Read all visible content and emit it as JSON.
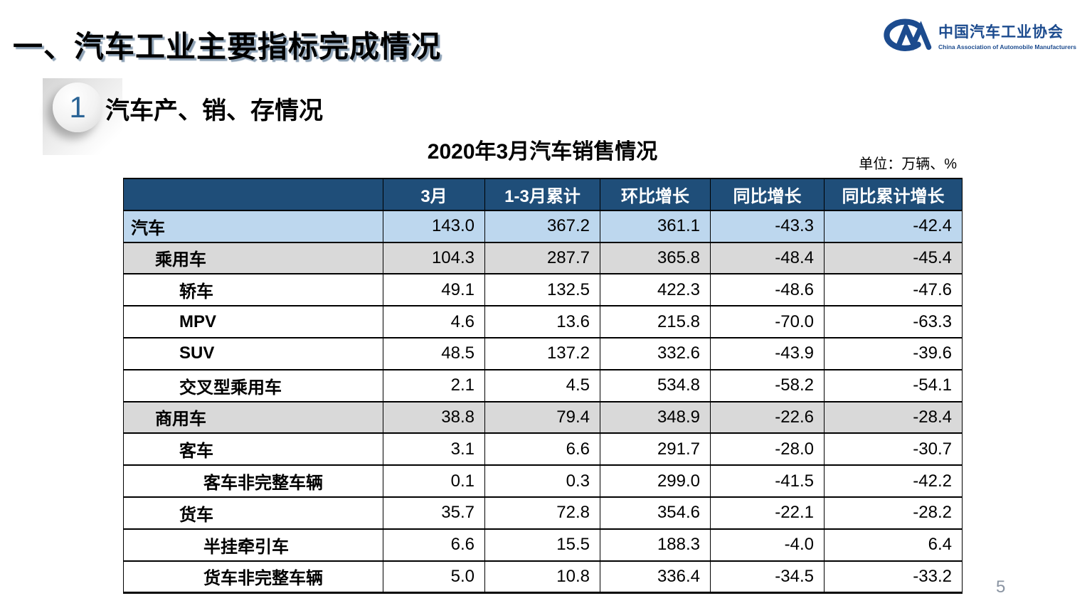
{
  "header": {
    "title": "一、汽车工业主要指标完成情况",
    "logo": {
      "name_cn": "中国汽车工业协会",
      "name_en": "China Association of Automobile Manufacturers"
    }
  },
  "section": {
    "number": "1",
    "title": "汽车产、销、存情况"
  },
  "table": {
    "title": "2020年3月汽车销售情况",
    "unit_label": "单位：万辆、%",
    "columns": [
      "",
      "3月",
      "1-3月累计",
      "环比增长",
      "同比增长",
      "同比累计增长"
    ],
    "rows": [
      {
        "label": "汽车",
        "indent": 0,
        "style": "blue",
        "values": [
          "143.0",
          "367.2",
          "361.1",
          "-43.3",
          "-42.4"
        ]
      },
      {
        "label": "乘用车",
        "indent": 1,
        "style": "gray",
        "values": [
          "104.3",
          "287.7",
          "365.8",
          "-48.4",
          "-45.4"
        ]
      },
      {
        "label": "轿车",
        "indent": 2,
        "style": "white",
        "values": [
          "49.1",
          "132.5",
          "422.3",
          "-48.6",
          "-47.6"
        ]
      },
      {
        "label": "MPV",
        "indent": 2,
        "style": "white",
        "values": [
          "4.6",
          "13.6",
          "215.8",
          "-70.0",
          "-63.3"
        ]
      },
      {
        "label": "SUV",
        "indent": 2,
        "style": "white",
        "values": [
          "48.5",
          "137.2",
          "332.6",
          "-43.9",
          "-39.6"
        ]
      },
      {
        "label": "交叉型乘用车",
        "indent": 2,
        "style": "white",
        "values": [
          "2.1",
          "4.5",
          "534.8",
          "-58.2",
          "-54.1"
        ]
      },
      {
        "label": "商用车",
        "indent": 1,
        "style": "gray",
        "values": [
          "38.8",
          "79.4",
          "348.9",
          "-22.6",
          "-28.4"
        ]
      },
      {
        "label": "客车",
        "indent": 2,
        "style": "white",
        "values": [
          "3.1",
          "6.6",
          "291.7",
          "-28.0",
          "-30.7"
        ]
      },
      {
        "label": "客车非完整车辆",
        "indent": 3,
        "style": "white",
        "values": [
          "0.1",
          "0.3",
          "299.0",
          "-41.5",
          "-42.2"
        ]
      },
      {
        "label": "货车",
        "indent": 2,
        "style": "white",
        "values": [
          "35.7",
          "72.8",
          "354.6",
          "-22.1",
          "-28.2"
        ]
      },
      {
        "label": "半挂牵引车",
        "indent": 3,
        "style": "white",
        "values": [
          "6.6",
          "15.5",
          "188.3",
          "-4.0",
          "6.4"
        ]
      },
      {
        "label": "货车非完整车辆",
        "indent": 3,
        "style": "white",
        "values": [
          "5.0",
          "10.8",
          "336.4",
          "-34.5",
          "-33.2"
        ]
      }
    ]
  },
  "colors": {
    "table_header_bg": "#1F4E79",
    "row_highlight_blue": "#BDD7EE",
    "row_highlight_gray": "#D9D9D9",
    "brand_blue": "#1C4B8E",
    "page_number_gray": "#8A94A2"
  },
  "footer": {
    "page_number": "5"
  }
}
